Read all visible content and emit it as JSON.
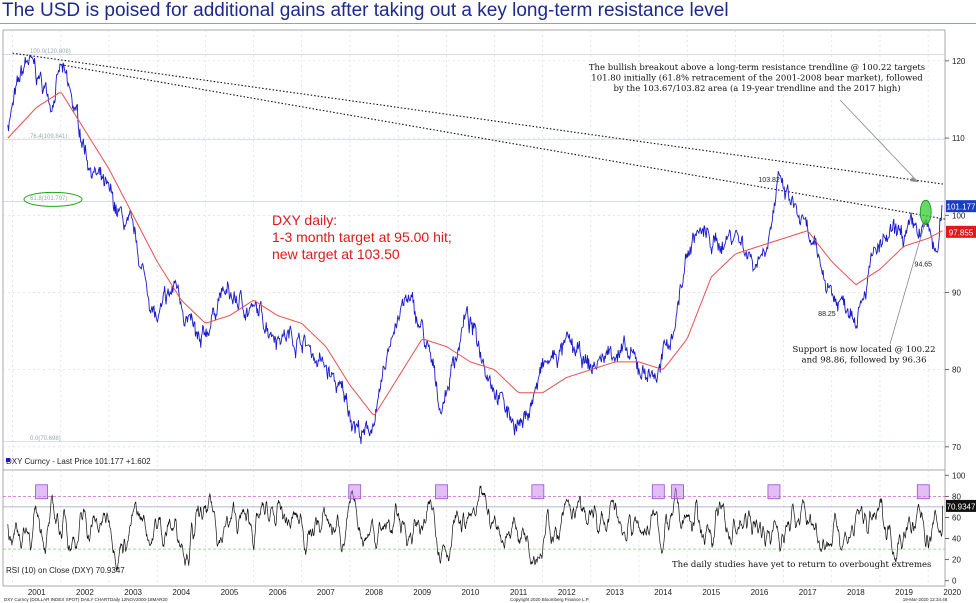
{
  "title": "The USD is poised for additional gains after taking out a key long-term resistance level",
  "chart_data": [
    {
      "type": "line",
      "panel": "price",
      "legend": "DXY Curncy - Last Price 101.177 +1.602",
      "x_ticks": [
        "2001",
        "2002",
        "2003",
        "2004",
        "2005",
        "2006",
        "2007",
        "2008",
        "2009",
        "2010",
        "2011",
        "2012",
        "2013",
        "2014",
        "2015",
        "2016",
        "2017",
        "2018",
        "2019",
        "2020"
      ],
      "y_ticks": [
        70,
        80,
        90,
        100,
        110,
        120
      ],
      "ylim": [
        67,
        124
      ],
      "xlim": [
        2000.8,
        2020.35
      ],
      "series": [
        {
          "color": "#1a1acc",
          "x": [
            2000.9,
            2001.1,
            2001.3,
            2001.5,
            2001.8,
            2002.0,
            2002.3,
            2002.6,
            2003.0,
            2003.5,
            2004.0,
            2004.4,
            2004.9,
            2005.3,
            2005.9,
            2006.5,
            2007.0,
            2007.5,
            2007.9,
            2008.3,
            2008.6,
            2008.9,
            2009.2,
            2009.5,
            2009.9,
            2010.4,
            2010.9,
            2011.3,
            2011.6,
            2012.0,
            2012.5,
            2013.0,
            2013.5,
            2014.0,
            2014.4,
            2014.7,
            2015.0,
            2015.2,
            2015.6,
            2016.0,
            2016.4,
            2016.6,
            2016.9,
            2017.3,
            2017.7,
            2018.1,
            2018.5,
            2018.9,
            2019.3,
            2019.7,
            2020.0,
            2020.2,
            2020.3
          ],
          "values": [
            112,
            116,
            120,
            118,
            115,
            119,
            113,
            107,
            102,
            97,
            86,
            91,
            82,
            90,
            88,
            85,
            84,
            80,
            76,
            71,
            75,
            86,
            89,
            85,
            75,
            87,
            80,
            74,
            73,
            80,
            83,
            80,
            83,
            80,
            79.5,
            85,
            95,
            98,
            96,
            98,
            94,
            96,
            103.82,
            100,
            94,
            89,
            88.25,
            95,
            97,
            97.5,
            98,
            94.65,
            101.177
          ]
        },
        {
          "color": "#e85050",
          "x": [
            2000.9,
            2001.5,
            2002.0,
            2002.5,
            2003.0,
            2003.5,
            2004.0,
            2004.5,
            2005.0,
            2005.5,
            2006.0,
            2006.5,
            2007.0,
            2007.5,
            2008.0,
            2008.5,
            2009.0,
            2009.5,
            2010.0,
            2010.5,
            2011.0,
            2011.5,
            2012.0,
            2012.5,
            2013.0,
            2013.5,
            2014.0,
            2014.5,
            2015.0,
            2015.5,
            2016.0,
            2016.5,
            2017.0,
            2017.5,
            2018.0,
            2018.5,
            2019.0,
            2019.5,
            2020.0,
            2020.3
          ],
          "values": [
            110,
            114,
            116,
            111,
            106,
            100,
            94,
            89,
            86,
            87,
            89,
            87,
            86,
            83,
            78,
            74,
            79,
            84,
            83,
            81,
            80,
            77,
            77,
            79,
            80,
            81,
            81,
            80,
            84,
            92,
            95,
            96,
            97,
            98,
            94,
            91,
            93,
            96,
            97,
            98
          ]
        }
      ],
      "trendlines": [
        {
          "style": "dotted",
          "from": [
            2001.0,
            121.0
          ],
          "to": [
            2020.35,
            104.0
          ]
        },
        {
          "style": "dotted",
          "from": [
            2002.0,
            119.5
          ],
          "to": [
            2020.35,
            99.5
          ]
        }
      ],
      "fib_levels": [
        {
          "label": "100.0(120.808)",
          "value": 120.808
        },
        {
          "label": "76.4(109.841)",
          "value": 109.841
        },
        {
          "label": "61.8(101.797)",
          "value": 101.797
        },
        {
          "label": "0.0(70.698)",
          "value": 70.698
        }
      ],
      "annotations": {
        "text_block": "DXY daily:\n1-3 month target at 95.00 hit;\nnew target at 103.50",
        "upper_note": "The bullish breakout above a long-term resistance trendline @ 100.22 targets\n101.80 initially (61.8% retracement of the 2001-2008 bear market), followed\nby the 103.67/103.82 area (a 19-year trendline and the 2017 high)",
        "lower_note": "Support is now located @ 100.22\nand 98.86, followed by 96.36",
        "point_labels": [
          {
            "label": "103.82",
            "x": 2016.7,
            "y": 103.82
          },
          {
            "label": "88.25",
            "x": 2017.9,
            "y": 88.25
          },
          {
            "label": "94.65",
            "x": 2019.9,
            "y": 94.65
          }
        ],
        "price_tags": [
          {
            "label": "101.177",
            "color": "#1a3cc8"
          },
          {
            "label": "97.855",
            "color": "#e01818"
          }
        ]
      }
    },
    {
      "type": "line",
      "panel": "rsi",
      "legend": "RSI (10)   on Close (DXY) 70.9347",
      "y_ticks": [
        0,
        20,
        40,
        60,
        80,
        100
      ],
      "ylim": [
        -5,
        105
      ],
      "reference_lines": [
        70,
        80,
        30
      ],
      "current_value": "70.9347",
      "note": "The daily studies have yet to return to overbought extremes",
      "overbought_marks": [
        2001.6,
        2008.1,
        2009.9,
        2011.9,
        2014.4,
        2014.8,
        2016.8,
        2019.9
      ]
    }
  ],
  "footer": {
    "left": "DXY Curncy (DOLLAR INDEX SPOT) DAILY CHART",
    "mid": "Daily 12NOV2000-18MAR20",
    "center": "Copyright 2020 Bloomberg Finance L.P.",
    "right": "19-Mar-2020 12:34:48"
  }
}
